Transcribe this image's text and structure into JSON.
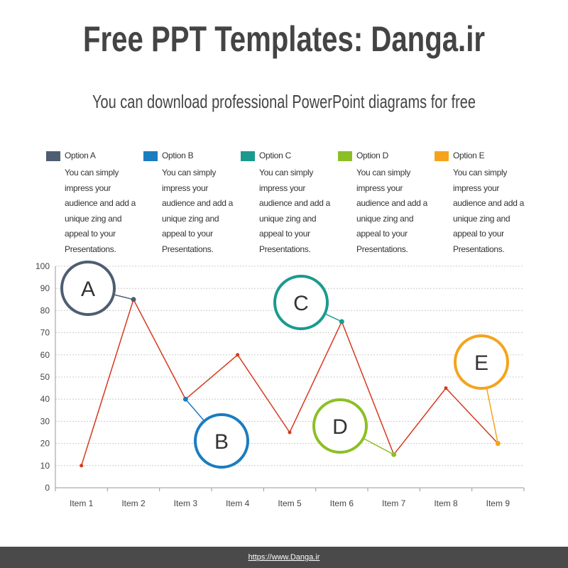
{
  "chart_data": {
    "type": "line",
    "title": "Free PPT Templates: Danga.ir",
    "subtitle": "You can download professional PowerPoint diagrams for free",
    "categories": [
      "Item 1",
      "Item 2",
      "Item 3",
      "Item 4",
      "Item 5",
      "Item 6",
      "Item 7",
      "Item 8",
      "Item 9"
    ],
    "values": [
      10,
      85,
      40,
      60,
      25,
      75,
      15,
      45,
      20
    ],
    "color": "#d6391f",
    "ylim": [
      0,
      100
    ],
    "yticks": [
      0,
      10,
      20,
      30,
      40,
      50,
      60,
      70,
      80,
      90,
      100
    ],
    "grid": true,
    "legend": [
      {
        "name": "Option A",
        "color": "#4e5d72",
        "text": "You can simply impress your audience and add a unique zing and appeal to your Presentations.",
        "label": "A",
        "category": "Item 2"
      },
      {
        "name": "Option B",
        "color": "#1a7dbf",
        "text": "You can simply impress your audience and add a unique zing and appeal to your Presentations.",
        "label": "B",
        "category": "Item 3"
      },
      {
        "name": "Option C",
        "color": "#1a9a8e",
        "text": "You can simply impress your audience and add a unique zing and appeal to your Presentations.",
        "label": "C",
        "category": "Item 6"
      },
      {
        "name": "Option D",
        "color": "#8cbf26",
        "text": "You can simply impress your audience and add a unique zing and appeal to your Presentations.",
        "label": "D",
        "category": "Item 7"
      },
      {
        "name": "Option E",
        "color": "#f5a31c",
        "text": "You can simply impress your audience and add a unique zing and appeal to your Presentations.",
        "label": "E",
        "category": "Item 9"
      }
    ]
  },
  "footer": "https://www.Danga.ir"
}
